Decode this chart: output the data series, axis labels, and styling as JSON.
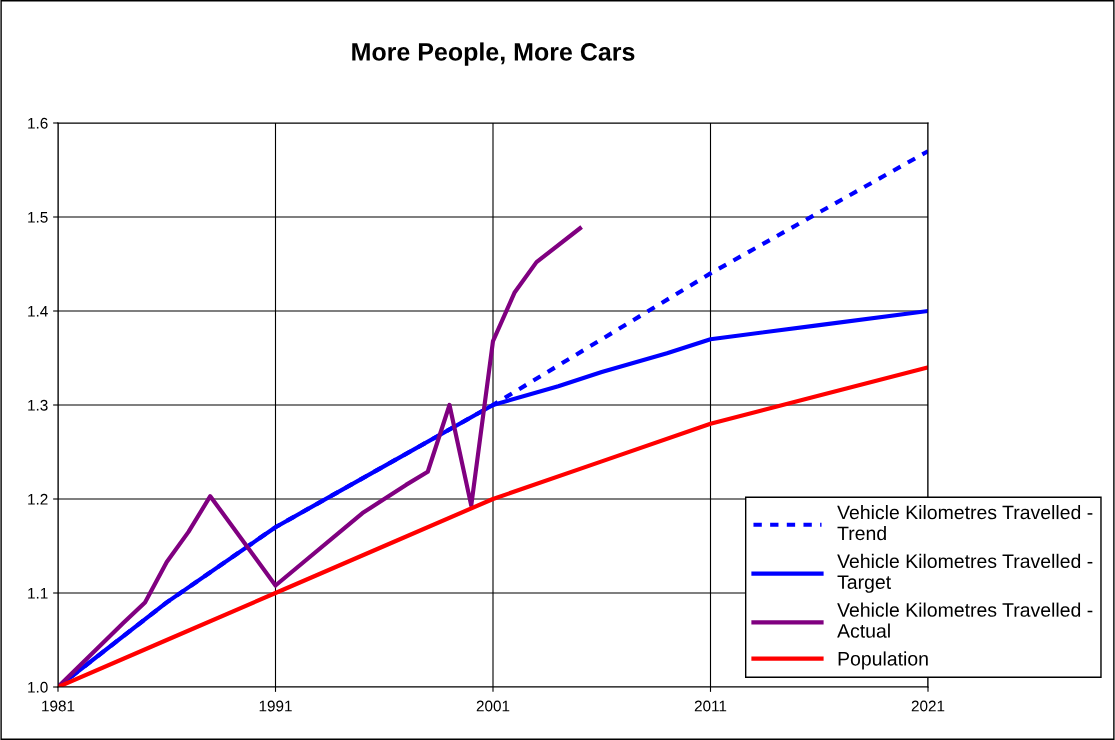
{
  "chart_data": {
    "type": "line",
    "title": "More People, More Cars",
    "xlim": [
      1981,
      2021
    ],
    "xticks": [
      1981,
      1991,
      2001,
      2011,
      2021
    ],
    "ylim": [
      1.0,
      1.6
    ],
    "yticks": [
      {
        "value": 1.0,
        "label": "1.0"
      },
      1.1,
      1.2,
      1.3,
      1.4,
      1.5,
      1.6
    ],
    "grid": true,
    "legend": "bottom right",
    "marker": "none",
    "series": [
      {
        "name": "Vehicle Kilometres Travelled - Trend",
        "color": "#0000ff",
        "line_style": "dashed",
        "x": [
          1981,
          1986,
          1991,
          1996,
          2001,
          2006,
          2011,
          2016,
          2021
        ],
        "values": [
          1.0,
          1.09,
          1.17,
          1.235,
          1.3,
          1.37,
          1.44,
          1.505,
          1.57
        ]
      },
      {
        "name": "Vehicle Kilometres Travelled - Target",
        "color": "#0000ff",
        "line_style": "solid",
        "x": [
          1981,
          1986,
          1991,
          1996,
          2001,
          2004,
          2006,
          2009,
          2011,
          2016,
          2021
        ],
        "values": [
          1.0,
          1.09,
          1.17,
          1.235,
          1.3,
          1.32,
          1.335,
          1.355,
          1.37,
          1.385,
          1.4
        ]
      },
      {
        "name": "Vehicle Kilometres Travelled - Actual",
        "color": "#800080",
        "line_style": "solid",
        "x": [
          1981,
          1984,
          1985,
          1986,
          1987,
          1988,
          1991,
          1995,
          1996,
          1997,
          1998,
          1999,
          2000,
          2001,
          2002,
          2003,
          2005
        ],
        "values": [
          1.0,
          1.068,
          1.09,
          1.133,
          1.165,
          1.203,
          1.108,
          1.185,
          1.2,
          1.215,
          1.229,
          1.3,
          1.193,
          1.368,
          1.42,
          1.452,
          1.488
        ]
      },
      {
        "name": "Population",
        "color": "#ff0000",
        "line_style": "solid",
        "x": [
          1981,
          1986,
          1991,
          1996,
          2001,
          2006,
          2011,
          2016,
          2021
        ],
        "values": [
          1.0,
          1.05,
          1.1,
          1.15,
          1.2,
          1.24,
          1.28,
          1.31,
          1.34
        ]
      }
    ]
  }
}
